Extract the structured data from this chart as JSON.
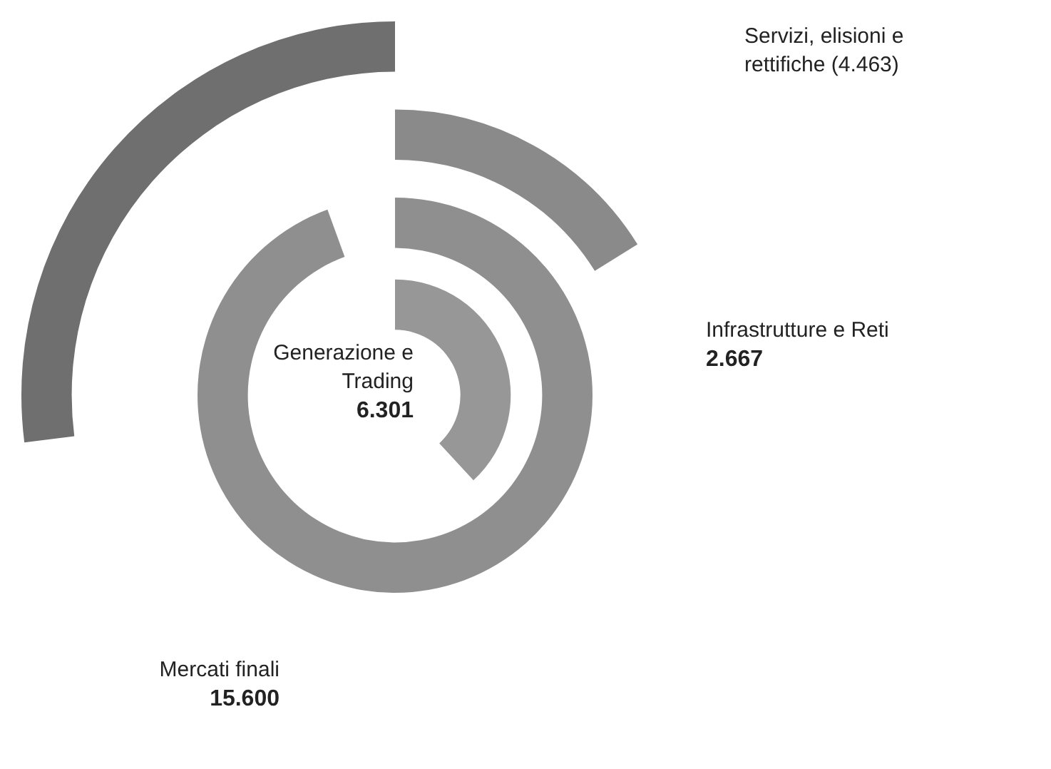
{
  "chart_data": {
    "type": "other",
    "categories": [
      "Servizi, elisioni e rettifiche",
      "Infrastrutture e Reti",
      "Mercati finali",
      "Generazione e Trading"
    ],
    "values": [
      -4463,
      2667,
      15600,
      6301
    ],
    "value_labels": [
      "(4.463)",
      "2.667",
      "15.600",
      "6.301"
    ],
    "colors": [
      "#6f6f6f",
      "#8a8a8a",
      "#8f8f8f",
      "#979797"
    ],
    "legend": false
  }
}
